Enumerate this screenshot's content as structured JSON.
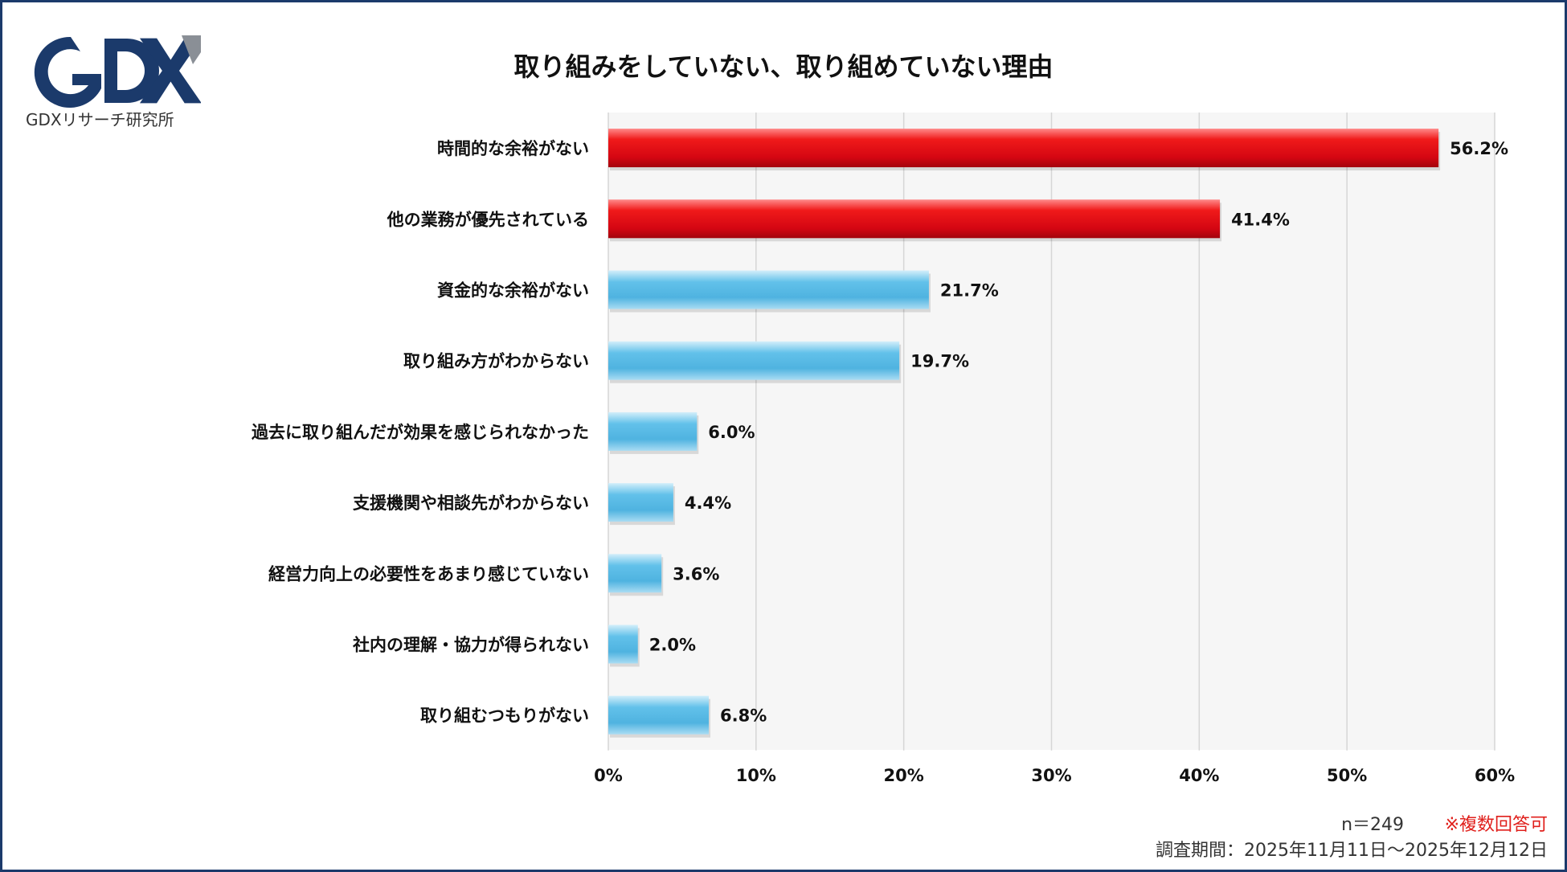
{
  "brand": {
    "logo_text": "GDX",
    "name": "GDXリサーチ研究所"
  },
  "colors": {
    "highlight": "#e0101a",
    "normal": "#5bbbe6",
    "frame": "#1b3a6b",
    "note_red": "#e0201c"
  },
  "chart_data": {
    "type": "bar",
    "orientation": "horizontal",
    "title": "取り組みをしていない、取り組めていない理由",
    "categories": [
      "時間的な余裕がない",
      "他の業務が優先されている",
      "資金的な余裕がない",
      "取り組み方がわからない",
      "過去に取り組んだが効果を感じられなかった",
      "支援機関や相談先がわからない",
      "経営力向上の必要性をあまり感じていない",
      "社内の理解・協力が得られない",
      "取り組むつもりがない"
    ],
    "values": [
      56.2,
      41.4,
      21.7,
      19.7,
      6.0,
      4.4,
      3.6,
      2.0,
      6.8
    ],
    "value_labels": [
      "56.2%",
      "41.4%",
      "21.7%",
      "19.7%",
      "6.0%",
      "4.4%",
      "3.6%",
      "2.0%",
      "6.8%"
    ],
    "highlighted": [
      true,
      true,
      false,
      false,
      false,
      false,
      false,
      false,
      false
    ],
    "xlim": [
      0,
      60
    ],
    "xticks": [
      0,
      10,
      20,
      30,
      40,
      50,
      60
    ],
    "xtick_labels": [
      "0%",
      "10%",
      "20%",
      "30%",
      "40%",
      "50%",
      "60%"
    ],
    "grid": true
  },
  "notes": {
    "sample": "n＝249",
    "multiple": "※複数回答可",
    "period": "調査期間：2025年11月11日～2025年12月12日"
  }
}
